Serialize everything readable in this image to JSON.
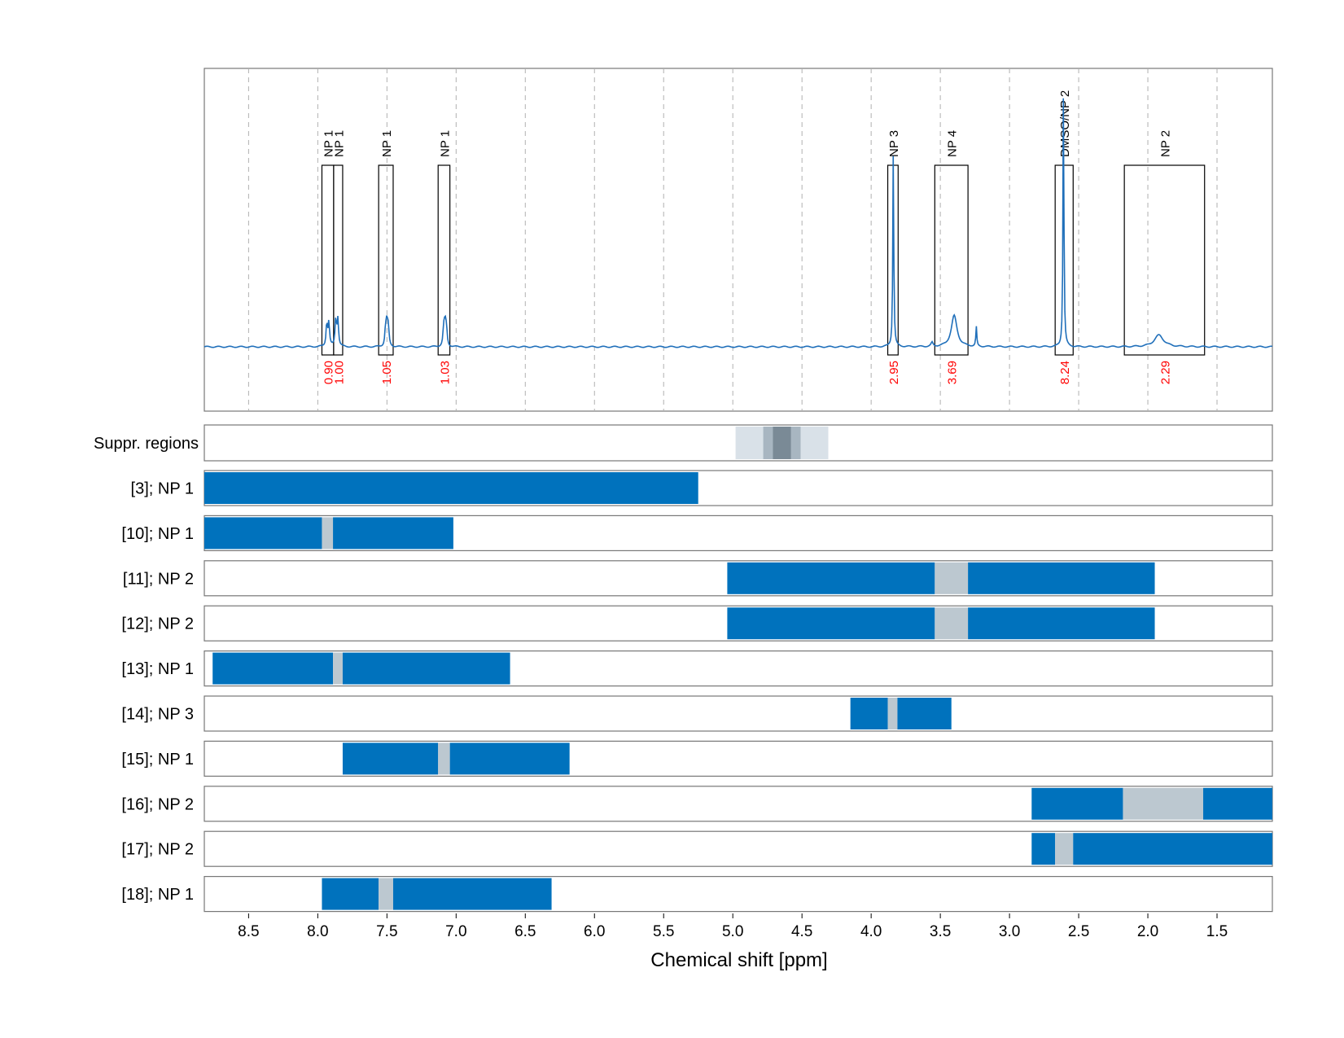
{
  "colors": {
    "spectrum": "#1f6fba",
    "interval_fill": "#0072bd",
    "interval_gap": "#bcc8d0",
    "suppr_outer": "#d9e1e8",
    "suppr_mid": "#a8b6c1",
    "suppr_inner": "#7a8a96",
    "integral_text": "#ff0000",
    "grid": "#b0b0b0"
  },
  "chart_data": {
    "type": "nmr-spectrum-with-intervals",
    "xlabel": "Chemical shift [ppm]",
    "xlim": [
      8.82,
      1.1
    ],
    "xticks": [
      8.5,
      8.0,
      7.5,
      7.0,
      6.5,
      6.0,
      5.5,
      5.0,
      4.5,
      4.0,
      3.5,
      3.0,
      2.5,
      2.0,
      1.5
    ],
    "xtick_labels": [
      "8.5",
      "8.0",
      "7.5",
      "7.0",
      "6.5",
      "6.0",
      "5.5",
      "5.0",
      "4.5",
      "4.0",
      "3.5",
      "3.0",
      "2.5",
      "2.0",
      "1.5"
    ],
    "grid": true,
    "peaks": [
      {
        "ppm": 7.935,
        "height": 0.06,
        "width": 0.006
      },
      {
        "ppm": 7.92,
        "height": 0.06,
        "width": 0.006
      },
      {
        "ppm": 7.87,
        "height": 0.07,
        "width": 0.006
      },
      {
        "ppm": 7.855,
        "height": 0.07,
        "width": 0.006
      },
      {
        "ppm": 7.51,
        "height": 0.045,
        "width": 0.006
      },
      {
        "ppm": 7.5,
        "height": 0.06,
        "width": 0.006
      },
      {
        "ppm": 7.49,
        "height": 0.045,
        "width": 0.006
      },
      {
        "ppm": 7.09,
        "height": 0.045,
        "width": 0.006
      },
      {
        "ppm": 7.08,
        "height": 0.06,
        "width": 0.006
      },
      {
        "ppm": 7.07,
        "height": 0.045,
        "width": 0.006
      },
      {
        "ppm": 3.84,
        "height": 0.5,
        "width": 0.004
      },
      {
        "ppm": 3.4,
        "height": 0.08,
        "width": 0.025
      },
      {
        "ppm": 3.56,
        "height": 0.01,
        "width": 0.008
      },
      {
        "ppm": 3.24,
        "height": 0.05,
        "width": 0.004
      },
      {
        "ppm": 2.61,
        "height": 0.67,
        "width": 0.004
      },
      {
        "ppm": 1.92,
        "height": 0.03,
        "width": 0.04
      }
    ],
    "regions": [
      {
        "label": "NP 1",
        "from": 7.97,
        "to": 7.885,
        "integral": "0.90"
      },
      {
        "label": "NP 1",
        "from": 7.885,
        "to": 7.82,
        "integral": "1.00"
      },
      {
        "label": "NP 1",
        "from": 7.56,
        "to": 7.455,
        "integral": "1.05"
      },
      {
        "label": "NP 1",
        "from": 7.13,
        "to": 7.045,
        "integral": "1.03"
      },
      {
        "label": "NP 3",
        "from": 3.88,
        "to": 3.805,
        "integral": "2.95"
      },
      {
        "label": "NP 4",
        "from": 3.54,
        "to": 3.3,
        "integral": "3.69"
      },
      {
        "label": "DMSO/NP 2",
        "from": 2.67,
        "to": 2.54,
        "integral": "8.24"
      },
      {
        "label": "NP 2",
        "from": 2.17,
        "to": 1.59,
        "integral": "2.29"
      }
    ],
    "suppr_regions": {
      "label": "Suppr. regions",
      "bands": [
        {
          "from": 4.98,
          "to": 4.31,
          "level": "outer"
        },
        {
          "from": 4.78,
          "to": 4.51,
          "level": "mid"
        },
        {
          "from": 4.71,
          "to": 4.58,
          "level": "inner"
        }
      ]
    },
    "rows": [
      {
        "label": "[3]; NP 1",
        "segments": [
          {
            "from": 8.82,
            "to": 5.25,
            "kind": "fill"
          }
        ]
      },
      {
        "label": "[10]; NP 1",
        "segments": [
          {
            "from": 8.82,
            "to": 7.97,
            "kind": "fill"
          },
          {
            "from": 7.97,
            "to": 7.89,
            "kind": "gap"
          },
          {
            "from": 7.89,
            "to": 7.02,
            "kind": "fill"
          }
        ]
      },
      {
        "label": "[11]; NP 2",
        "segments": [
          {
            "from": 5.04,
            "to": 3.54,
            "kind": "fill"
          },
          {
            "from": 3.54,
            "to": 3.3,
            "kind": "gap"
          },
          {
            "from": 3.3,
            "to": 1.95,
            "kind": "fill"
          }
        ]
      },
      {
        "label": "[12]; NP 2",
        "segments": [
          {
            "from": 5.04,
            "to": 3.54,
            "kind": "fill"
          },
          {
            "from": 3.54,
            "to": 3.3,
            "kind": "gap"
          },
          {
            "from": 3.3,
            "to": 1.95,
            "kind": "fill"
          }
        ]
      },
      {
        "label": "[13]; NP 1",
        "segments": [
          {
            "from": 8.76,
            "to": 7.89,
            "kind": "fill"
          },
          {
            "from": 7.89,
            "to": 7.82,
            "kind": "gap"
          },
          {
            "from": 7.82,
            "to": 6.61,
            "kind": "fill"
          }
        ]
      },
      {
        "label": "[14]; NP 3",
        "segments": [
          {
            "from": 4.15,
            "to": 3.88,
            "kind": "fill"
          },
          {
            "from": 3.88,
            "to": 3.81,
            "kind": "gap"
          },
          {
            "from": 3.81,
            "to": 3.42,
            "kind": "fill"
          }
        ]
      },
      {
        "label": "[15]; NP 1",
        "segments": [
          {
            "from": 7.82,
            "to": 7.13,
            "kind": "fill"
          },
          {
            "from": 7.13,
            "to": 7.045,
            "kind": "gap"
          },
          {
            "from": 7.045,
            "to": 6.18,
            "kind": "fill"
          }
        ]
      },
      {
        "label": "[16]; NP 2",
        "segments": [
          {
            "from": 2.84,
            "to": 2.18,
            "kind": "fill"
          },
          {
            "from": 2.18,
            "to": 1.6,
            "kind": "gap"
          },
          {
            "from": 1.6,
            "to": 1.1,
            "kind": "fill"
          }
        ]
      },
      {
        "label": "[17]; NP 2",
        "segments": [
          {
            "from": 2.84,
            "to": 2.67,
            "kind": "fill"
          },
          {
            "from": 2.67,
            "to": 2.54,
            "kind": "gap"
          },
          {
            "from": 2.54,
            "to": 1.1,
            "kind": "fill"
          }
        ]
      },
      {
        "label": "[18]; NP 1",
        "segments": [
          {
            "from": 7.97,
            "to": 7.56,
            "kind": "fill"
          },
          {
            "from": 7.56,
            "to": 7.455,
            "kind": "gap"
          },
          {
            "from": 7.455,
            "to": 6.31,
            "kind": "fill"
          }
        ]
      }
    ]
  }
}
